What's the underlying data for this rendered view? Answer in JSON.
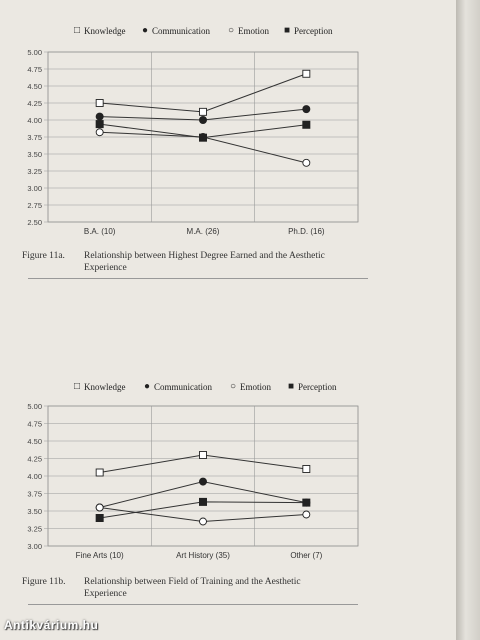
{
  "figures": [
    {
      "caption_label": "Figure 11a.",
      "caption_line1": "Relationship between Highest Degree Earned and the Aesthetic",
      "caption_line2": "Experience"
    },
    {
      "caption_label": "Figure 11b.",
      "caption_line1": "Relationship between Field of Training and the Aesthetic",
      "caption_line2": "Experience"
    }
  ],
  "legend": [
    {
      "name": "Knowledge",
      "symbol": "□",
      "marker": "open-square"
    },
    {
      "name": "Communication",
      "symbol": "●",
      "marker": "filled-circle"
    },
    {
      "name": "Emotion",
      "symbol": "○",
      "marker": "open-circle"
    },
    {
      "name": "Perception",
      "symbol": "■",
      "marker": "filled-square"
    }
  ],
  "watermark": "Antikvárium.hu",
  "chart_data": [
    {
      "type": "line",
      "categories": [
        "B.A. (10)",
        "M.A. (26)",
        "Ph.D. (16)"
      ],
      "ylim": [
        2.5,
        5.0
      ],
      "yticks": [
        "2.50",
        "2.75",
        "3.00",
        "3.25",
        "3.50",
        "3.75",
        "4.00",
        "4.25",
        "4.50",
        "4.75",
        "5.00"
      ],
      "grid": "on",
      "legend_position": "top",
      "series": [
        {
          "name": "Knowledge",
          "values": [
            4.25,
            4.12,
            4.68
          ]
        },
        {
          "name": "Communication",
          "values": [
            4.05,
            4.0,
            4.16
          ]
        },
        {
          "name": "Emotion",
          "values": [
            3.82,
            3.75,
            3.37
          ]
        },
        {
          "name": "Perception",
          "values": [
            3.94,
            3.74,
            3.93
          ]
        }
      ]
    },
    {
      "type": "line",
      "categories": [
        "Fine Arts (10)",
        "Art History (35)",
        "Other (7)"
      ],
      "ylim": [
        3.0,
        5.0
      ],
      "yticks": [
        "3.00",
        "3.25",
        "3.50",
        "3.75",
        "4.00",
        "4.25",
        "4.50",
        "4.75",
        "5.00"
      ],
      "grid": "on",
      "legend_position": "top",
      "series": [
        {
          "name": "Knowledge",
          "values": [
            4.05,
            4.3,
            4.1
          ]
        },
        {
          "name": "Communication",
          "values": [
            3.55,
            3.92,
            3.62
          ]
        },
        {
          "name": "Emotion",
          "values": [
            3.55,
            3.35,
            3.45
          ]
        },
        {
          "name": "Perception",
          "values": [
            3.4,
            3.63,
            3.62
          ]
        }
      ]
    }
  ]
}
